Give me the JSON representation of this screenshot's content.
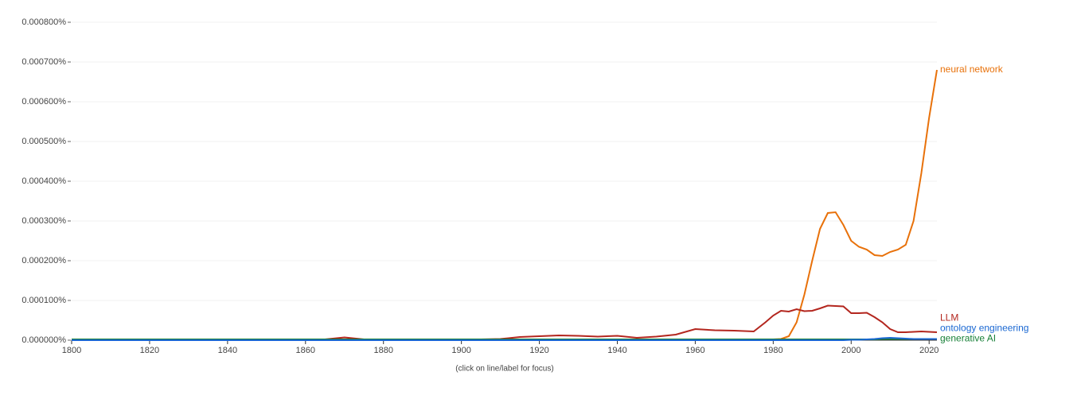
{
  "chart_data": {
    "type": "line",
    "note": "(click on line/label for focus)",
    "x": [
      1800,
      1810,
      1820,
      1830,
      1840,
      1850,
      1860,
      1865,
      1870,
      1875,
      1880,
      1890,
      1900,
      1905,
      1910,
      1915,
      1920,
      1925,
      1930,
      1935,
      1940,
      1945,
      1950,
      1955,
      1960,
      1965,
      1970,
      1975,
      1978,
      1980,
      1982,
      1984,
      1986,
      1988,
      1990,
      1992,
      1994,
      1996,
      1998,
      2000,
      2002,
      2004,
      2006,
      2008,
      2010,
      2012,
      2014,
      2016,
      2018,
      2020,
      2022
    ],
    "series": [
      {
        "name": "neural network",
        "color": "#e8710a",
        "values": [
          0,
          0,
          0,
          0,
          0,
          0,
          0,
          0,
          0,
          0,
          0,
          0,
          0,
          0,
          0,
          0,
          0,
          0,
          0,
          0,
          0,
          0,
          0,
          0,
          0,
          0,
          0,
          1e-06,
          1e-06,
          2e-06,
          3e-06,
          1e-05,
          4.5e-05,
          0.000115,
          0.0002,
          0.00028,
          0.00032,
          0.000322,
          0.00029,
          0.00025,
          0.000235,
          0.000228,
          0.000214,
          0.000212,
          0.000222,
          0.000228,
          0.00024,
          0.0003,
          0.00042,
          0.00056,
          0.00068
        ]
      },
      {
        "name": "LLM",
        "color": "#b3261e",
        "values": [
          2e-06,
          2e-06,
          2e-06,
          2e-06,
          2e-06,
          2e-06,
          2e-06,
          2e-06,
          7e-06,
          2e-06,
          2e-06,
          2e-06,
          2e-06,
          2e-06,
          3e-06,
          8e-06,
          1e-05,
          1.2e-05,
          1.1e-05,
          9e-06,
          1.1e-05,
          6e-06,
          9e-06,
          1.4e-05,
          2.8e-05,
          2.5e-05,
          2.4e-05,
          2.2e-05,
          4.5e-05,
          6.2e-05,
          7.4e-05,
          7.2e-05,
          7.8e-05,
          7.3e-05,
          7.4e-05,
          8e-05,
          8.7e-05,
          8.6e-05,
          8.5e-05,
          6.8e-05,
          6.8e-05,
          6.9e-05,
          5.8e-05,
          4.5e-05,
          2.8e-05,
          2e-05,
          2e-05,
          2.1e-05,
          2.2e-05,
          2.1e-05,
          2e-05
        ]
      },
      {
        "name": "generative AI",
        "color": "#188038",
        "values": [
          2e-06,
          2e-06,
          2e-06,
          2e-06,
          2e-06,
          2e-06,
          2e-06,
          2e-06,
          2e-06,
          2e-06,
          2e-06,
          2e-06,
          2e-06,
          2e-06,
          2e-06,
          2e-06,
          2e-06,
          2e-06,
          2e-06,
          2e-06,
          2e-06,
          2e-06,
          2e-06,
          2e-06,
          2e-06,
          2e-06,
          2e-06,
          2e-06,
          2e-06,
          2e-06,
          2e-06,
          2e-06,
          2e-06,
          2e-06,
          2e-06,
          2e-06,
          2e-06,
          2e-06,
          2e-06,
          2e-06,
          2e-06,
          2e-06,
          2e-06,
          3e-06,
          3e-06,
          3e-06,
          3e-06,
          3e-06,
          3e-06,
          3e-06,
          3e-06
        ]
      },
      {
        "name": "ontology engineering",
        "color": "#1967d2",
        "values": [
          0,
          0,
          0,
          0,
          0,
          0,
          0,
          0,
          0,
          0,
          0,
          0,
          0,
          0,
          0,
          0,
          0,
          0,
          0,
          0,
          0,
          0,
          0,
          0,
          0,
          0,
          0,
          0,
          0,
          0,
          0,
          0,
          0,
          0,
          0,
          0,
          0,
          0,
          0,
          1e-06,
          1e-06,
          2e-06,
          3e-06,
          5e-06,
          6e-06,
          5e-06,
          4e-06,
          3e-06,
          3e-06,
          3e-06,
          3e-06
        ]
      }
    ],
    "xlim": [
      1800,
      2022
    ],
    "xticks": [
      1800,
      1820,
      1840,
      1860,
      1880,
      1900,
      1920,
      1940,
      1960,
      1980,
      2000,
      2020
    ],
    "ylim": [
      0,
      0.0008
    ],
    "yticks": [
      {
        "value": 0,
        "label": "0.000000%"
      },
      {
        "value": 0.0001,
        "label": "0.000100%"
      },
      {
        "value": 0.0002,
        "label": "0.000200%"
      },
      {
        "value": 0.0003,
        "label": "0.000300%"
      },
      {
        "value": 0.0004,
        "label": "0.000400%"
      },
      {
        "value": 0.0005,
        "label": "0.000500%"
      },
      {
        "value": 0.0006,
        "label": "0.000600%"
      },
      {
        "value": 0.0007,
        "label": "0.000700%"
      },
      {
        "value": 0.0008,
        "label": "0.000800%"
      }
    ],
    "grid": true
  }
}
